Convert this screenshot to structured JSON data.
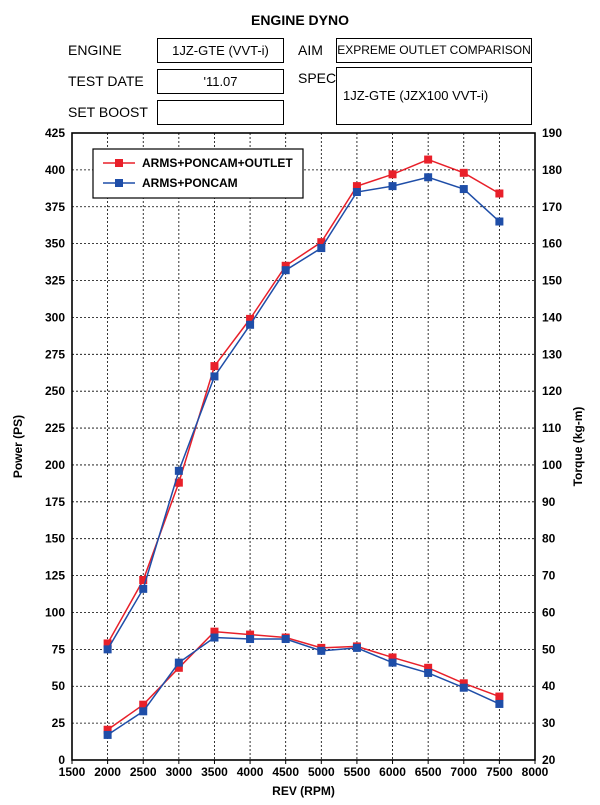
{
  "header": {
    "title": "ENGINE DYNO",
    "engine_label": "ENGINE",
    "engine_value": "1JZ-GTE (VVT-i)",
    "test_date_label": "TEST DATE",
    "test_date_value": "'11.07",
    "set_boost_label": "SET BOOST",
    "set_boost_value": "",
    "aim_label": "AIM",
    "aim_value": "EXPREME OUTLET COMPARISON",
    "spec_label": "SPEC",
    "spec_value": "1JZ-GTE (JZX100 VVT-i)"
  },
  "chart_data": {
    "type": "line",
    "xlabel": "REV (RPM)",
    "ylabel": "Power (PS)",
    "y2label": "Torque (kg-m)",
    "xlim": [
      1500,
      8000
    ],
    "ylim": [
      0,
      425
    ],
    "y2lim": [
      20,
      190
    ],
    "x_ticks": [
      1500,
      2000,
      2500,
      3000,
      3500,
      4000,
      4500,
      5000,
      5500,
      6000,
      6500,
      7000,
      7500,
      8000
    ],
    "y_ticks": [
      0,
      25,
      50,
      75,
      100,
      125,
      150,
      175,
      200,
      225,
      250,
      275,
      300,
      325,
      350,
      375,
      400,
      425
    ],
    "y2_ticks": [
      20,
      30,
      40,
      50,
      60,
      70,
      80,
      90,
      100,
      110,
      120,
      130,
      140,
      150,
      160,
      170,
      180,
      190
    ],
    "x": [
      2000,
      2500,
      3000,
      3500,
      4000,
      4500,
      5000,
      5500,
      6000,
      6500,
      7000,
      7500
    ],
    "grid": true,
    "legend_position": "top-left",
    "series": [
      {
        "name": "ARMS+PONCAM+OUTLET",
        "color": "#e8202a",
        "marker": "square",
        "power": [
          79,
          122,
          188,
          267,
          299,
          335,
          351,
          389,
          397,
          407,
          398,
          384
        ],
        "torque": [
          28.2,
          35.0,
          45.0,
          54.8,
          54.0,
          53.2,
          50.4,
          50.8,
          47.8,
          45.0,
          40.8,
          37.2
        ]
      },
      {
        "name": "ARMS+PONCAM",
        "color": "#1f4ea8",
        "marker": "square",
        "power": [
          75,
          116,
          196,
          260,
          295,
          332,
          347,
          385,
          389,
          395,
          387,
          365
        ],
        "torque": [
          26.8,
          33.2,
          46.4,
          53.2,
          52.8,
          52.8,
          49.6,
          50.4,
          46.4,
          43.6,
          39.6,
          35.2
        ]
      }
    ]
  }
}
